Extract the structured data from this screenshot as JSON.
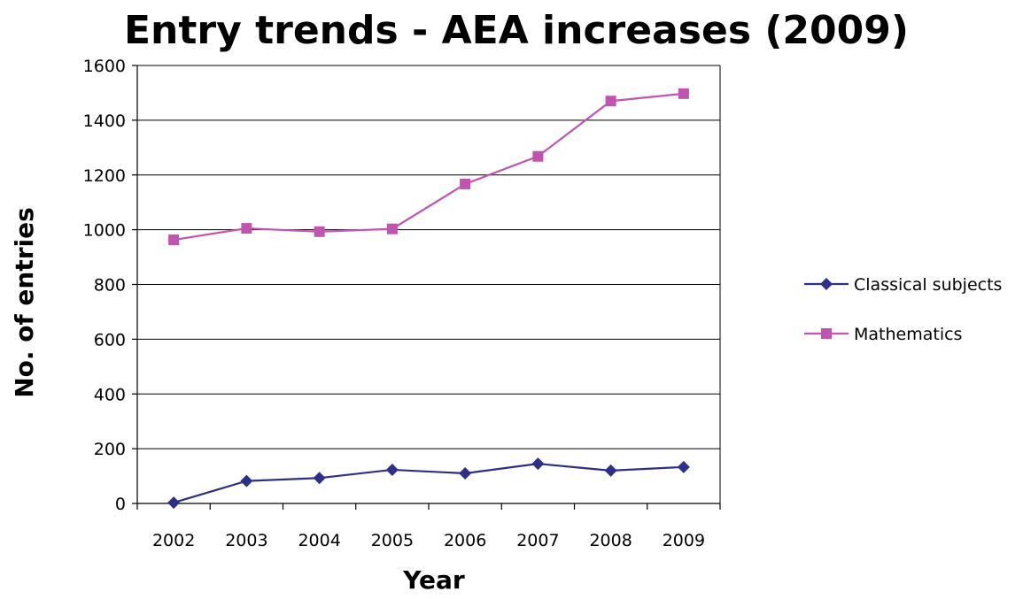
{
  "chart_data": {
    "type": "line",
    "title": "Entry trends - AEA increases (2009)",
    "xlabel": "Year",
    "ylabel": "No. of entries",
    "categories": [
      "2002",
      "2003",
      "2004",
      "2005",
      "2006",
      "2007",
      "2008",
      "2009"
    ],
    "y_ticks": [
      "0",
      "200",
      "400",
      "600",
      "800",
      "1000",
      "1200",
      "1400",
      "1600"
    ],
    "ylim": [
      0,
      1600
    ],
    "grid": "horizontal major gridlines on",
    "legend_position": "right",
    "series": [
      {
        "name": "Classical subjects",
        "values": [
          3,
          82,
          93,
          123,
          110,
          145,
          120,
          133
        ],
        "color": "#2E3087",
        "marker": "diamond"
      },
      {
        "name": "Mathematics",
        "values": [
          963,
          1005,
          993,
          1003,
          1167,
          1268,
          1470,
          1497
        ],
        "color": "#C154AF",
        "marker": "square"
      }
    ]
  }
}
